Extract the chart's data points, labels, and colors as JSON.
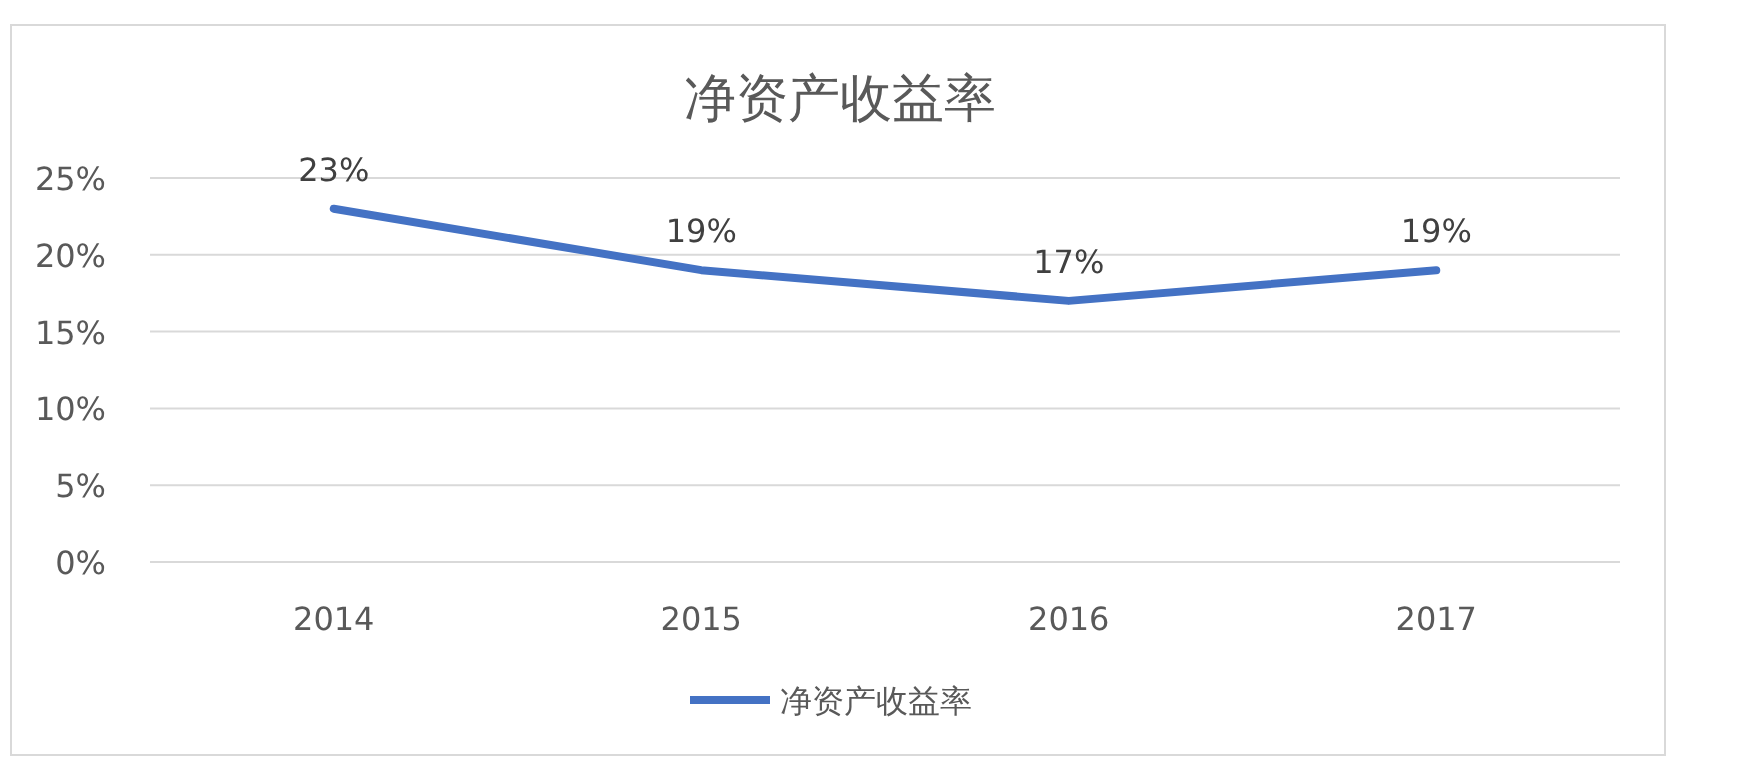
{
  "chart_data": {
    "type": "line",
    "title": "净资产收益率",
    "categories": [
      "2014",
      "2015",
      "2016",
      "2017"
    ],
    "series": [
      {
        "name": "净资产收益率",
        "color": "#4472c4",
        "values": [
          23,
          19,
          17,
          19
        ],
        "value_labels": [
          "23%",
          "19%",
          "17%",
          "19%"
        ]
      }
    ],
    "ylim": [
      0,
      25
    ],
    "yticks": [
      {
        "value": 0,
        "label": "0%"
      },
      {
        "value": 5,
        "label": "5%"
      },
      {
        "value": 10,
        "label": "10%"
      },
      {
        "value": 15,
        "label": "15%"
      },
      {
        "value": 20,
        "label": "20%"
      },
      {
        "value": 25,
        "label": "25%"
      }
    ],
    "grid": "y",
    "legend": "bottom"
  }
}
